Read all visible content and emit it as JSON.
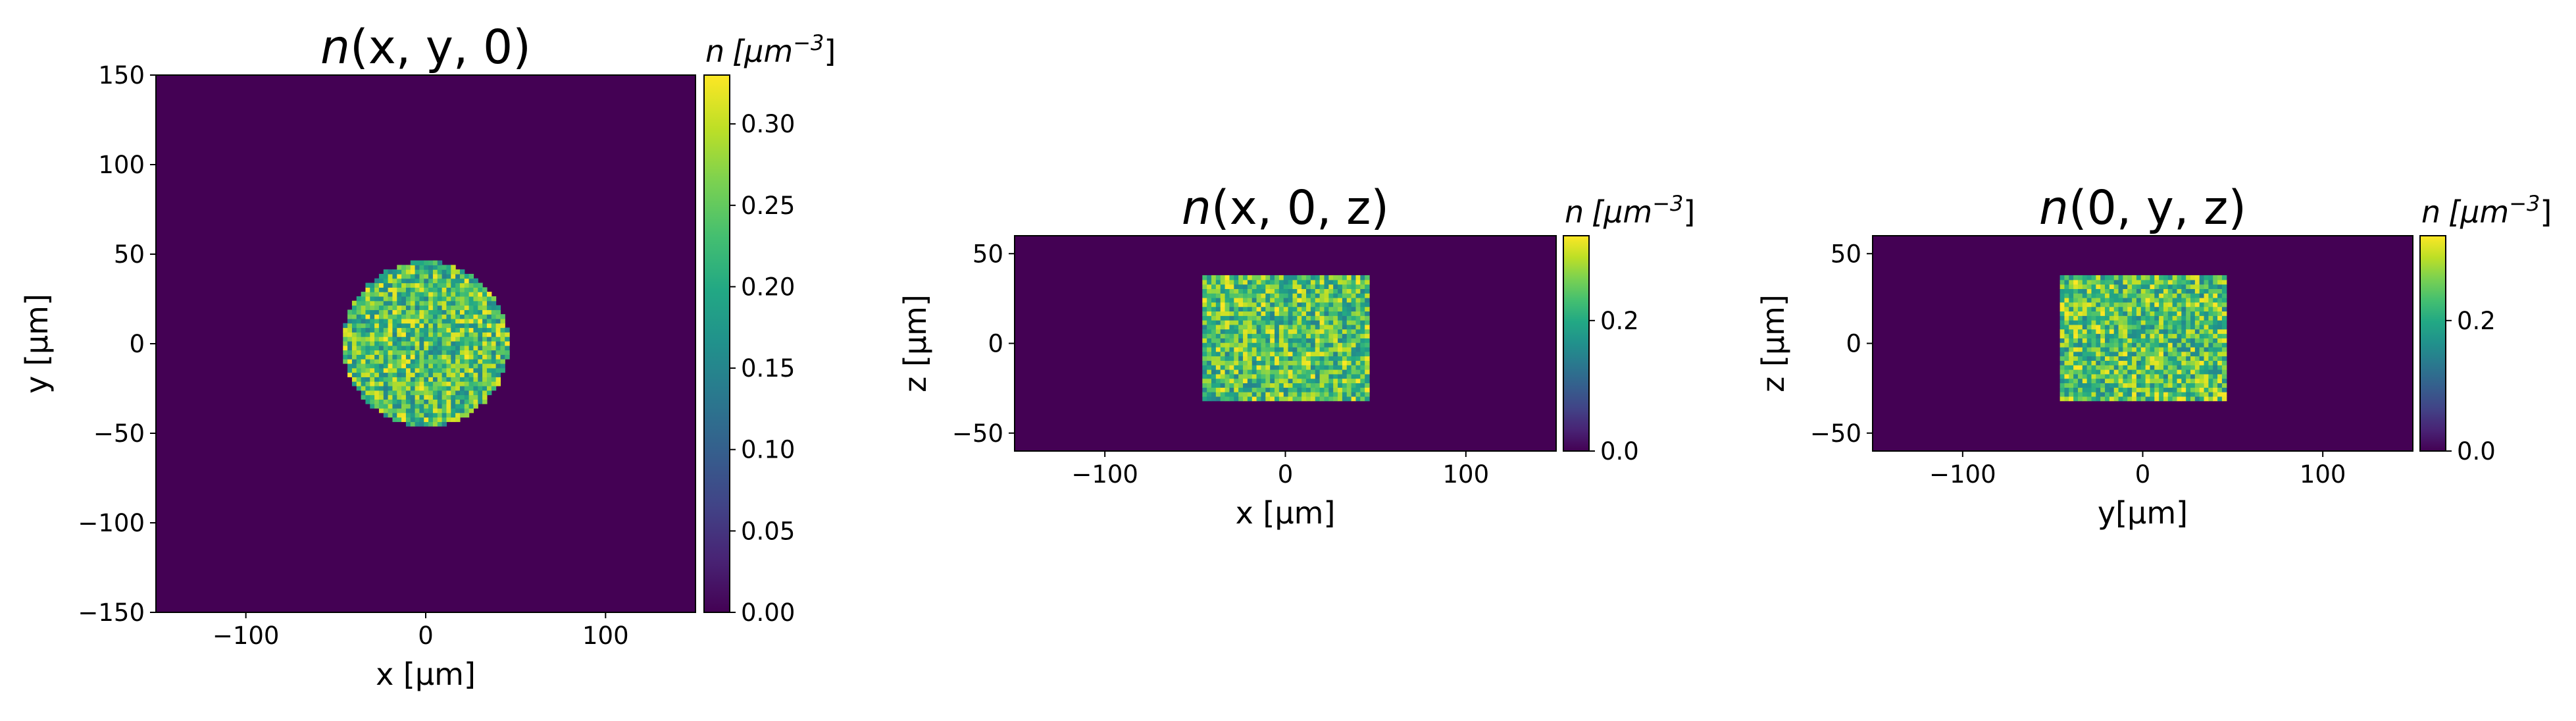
{
  "chart_data": [
    {
      "type": "heatmap",
      "title_italic": "n",
      "title_rest": "(x, y, 0)",
      "xlabel": "x [µm]",
      "ylabel": "y [µm]",
      "xlim": [
        -150,
        150
      ],
      "ylim": [
        -150,
        150
      ],
      "xticks": [
        -100,
        0,
        100
      ],
      "xtick_labels": [
        "−100",
        "0",
        "100"
      ],
      "yticks": [
        150,
        100,
        50,
        0,
        -50,
        -100,
        -150
      ],
      "ytick_labels": [
        "150",
        "100",
        "50",
        "0",
        "−50",
        "−100",
        "−150"
      ],
      "region": {
        "shape": "disk",
        "center": [
          0,
          0
        ],
        "radius": 46
      },
      "region_value_range": [
        0.08,
        0.33
      ],
      "background_value": 0.0,
      "colorbar": {
        "label_italic": "n",
        "label_units": "[μm",
        "label_exp": "−3",
        "label_close": "]",
        "range": [
          0,
          0.33
        ],
        "ticks": [
          0.0,
          0.05,
          0.1,
          0.15,
          0.2,
          0.25,
          0.3
        ],
        "tick_labels": [
          "0.00",
          "0.05",
          "0.10",
          "0.15",
          "0.20",
          "0.25",
          "0.30"
        ]
      },
      "grid": false
    },
    {
      "type": "heatmap",
      "title_italic": "n",
      "title_rest": "(x, 0, z)",
      "xlabel": "x [µm]",
      "ylabel": "z [µm]",
      "xlim": [
        -150,
        150
      ],
      "ylim": [
        -60,
        60
      ],
      "xticks": [
        -100,
        0,
        100
      ],
      "xtick_labels": [
        "−100",
        "0",
        "100"
      ],
      "yticks": [
        50,
        0,
        -50
      ],
      "ytick_labels": [
        "50",
        "0",
        "−50"
      ],
      "region": {
        "shape": "rect",
        "x": [
          -46,
          46
        ],
        "y": [
          -32,
          36
        ]
      },
      "region_value_range": [
        0.08,
        0.33
      ],
      "background_value": 0.0,
      "colorbar": {
        "label_italic": "n",
        "label_units": "[μm",
        "label_exp": "−3",
        "label_close": "]",
        "range": [
          0,
          0.33
        ],
        "ticks": [
          0.0,
          0.2
        ],
        "tick_labels": [
          "0.0",
          "0.2"
        ]
      },
      "grid": false
    },
    {
      "type": "heatmap",
      "title_italic": "n",
      "title_rest": "(0, y, z)",
      "xlabel": "y[µm]",
      "ylabel": "z [µm]",
      "xlim": [
        -150,
        150
      ],
      "ylim": [
        -60,
        60
      ],
      "xticks": [
        -100,
        0,
        100
      ],
      "xtick_labels": [
        "−100",
        "0",
        "100"
      ],
      "yticks": [
        50,
        0,
        -50
      ],
      "ytick_labels": [
        "50",
        "0",
        "−50"
      ],
      "region": {
        "shape": "rect",
        "x": [
          -46,
          46
        ],
        "y": [
          -32,
          36
        ]
      },
      "region_value_range": [
        0.08,
        0.33
      ],
      "background_value": 0.0,
      "colorbar": {
        "label_italic": "n",
        "label_units": "[μm",
        "label_exp": "−3",
        "label_close": "]",
        "range": [
          0,
          0.33
        ],
        "ticks": [
          0.0,
          0.2
        ],
        "tick_labels": [
          "0.0",
          "0.2"
        ]
      },
      "grid": false
    }
  ],
  "colors": {
    "background_min": "#440154",
    "colormap": "viridis"
  }
}
